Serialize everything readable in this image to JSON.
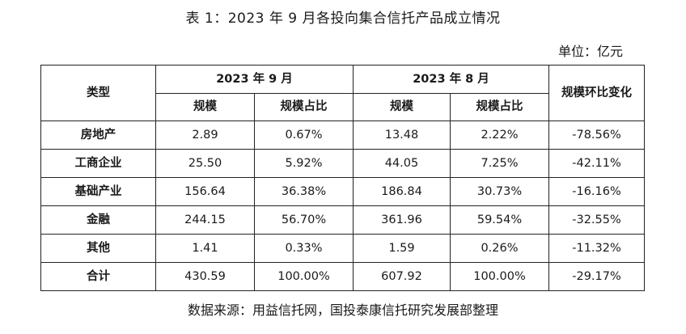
{
  "title": "表 1：2023 年 9 月各投向集合信托产品成立情况",
  "unit": "单位：亿元",
  "table": {
    "header": {
      "type": "类型",
      "group_sep": "2023 年 9 月",
      "group_aug": "2023 年 8 月",
      "change": "规模环比变化",
      "scale": "规模",
      "share": "规模占比"
    },
    "rows": [
      {
        "type": "房地产",
        "sep_scale": "2.89",
        "sep_share": "0.67%",
        "aug_scale": "13.48",
        "aug_share": "2.22%",
        "change": "-78.56%"
      },
      {
        "type": "工商企业",
        "sep_scale": "25.50",
        "sep_share": "5.92%",
        "aug_scale": "44.05",
        "aug_share": "7.25%",
        "change": "-42.11%"
      },
      {
        "type": "基础产业",
        "sep_scale": "156.64",
        "sep_share": "36.38%",
        "aug_scale": "186.84",
        "aug_share": "30.73%",
        "change": "-16.16%"
      },
      {
        "type": "金融",
        "sep_scale": "244.15",
        "sep_share": "56.70%",
        "aug_scale": "361.96",
        "aug_share": "59.54%",
        "change": "-32.55%"
      },
      {
        "type": "其他",
        "sep_scale": "1.41",
        "sep_share": "0.33%",
        "aug_scale": "1.59",
        "aug_share": "0.26%",
        "change": "-11.32%"
      },
      {
        "type": "合计",
        "sep_scale": "430.59",
        "sep_share": "100.00%",
        "aug_scale": "607.92",
        "aug_share": "100.00%",
        "change": "-29.17%"
      }
    ]
  },
  "source": "数据来源：用益信托网，国投泰康信托研究发展部整理"
}
